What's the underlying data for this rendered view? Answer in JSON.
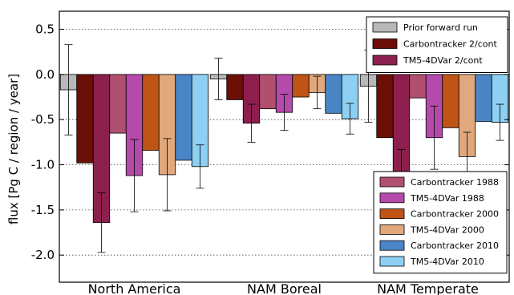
{
  "chart_data": {
    "type": "bar",
    "ylabel": "flux [Pg C / region / year]",
    "ylim": [
      -2.3,
      0.7
    ],
    "yticks": [
      0.5,
      0.0,
      -0.5,
      -1.0,
      -1.5,
      -2.0
    ],
    "ytick_labels": [
      "0.5",
      "0.0",
      "-0.5",
      "-1.0",
      "-1.5",
      "-2.0"
    ],
    "grid": "horizontal-dotted",
    "categories": [
      "North America",
      "NAM Boreal",
      "NAM Temperate"
    ],
    "series": [
      {
        "name": "Prior forward run",
        "color": "#b8b8b8",
        "values": [
          -0.17,
          -0.05,
          -0.13
        ],
        "errors": [
          0.5,
          0.23,
          0.4
        ],
        "errcolor": "#000000"
      },
      {
        "name": "Carbontracker 2/cont",
        "color": "#6b0f07",
        "values": [
          -0.98,
          -0.28,
          -0.7
        ],
        "errors": [
          null,
          null,
          null
        ],
        "errcolor": "#000000"
      },
      {
        "name": "TM5-4DVar 2/cont",
        "color": "#8c1f4d",
        "values": [
          -1.64,
          -0.54,
          -1.1
        ],
        "errors": [
          0.33,
          0.21,
          0.27
        ],
        "errcolor": "#000000"
      },
      {
        "name": "Carbontracker 1988",
        "color": "#b0506e",
        "values": [
          -0.65,
          -0.38,
          -0.26
        ],
        "errors": [
          null,
          null,
          null
        ],
        "errcolor": "#000000"
      },
      {
        "name": "TM5-4DVar 1988",
        "color": "#b44aaa",
        "values": [
          -1.12,
          -0.42,
          -0.7
        ],
        "errors": [
          0.4,
          0.2,
          0.35
        ],
        "errcolor": "#000000"
      },
      {
        "name": "Carbontracker 2000",
        "color": "#c05416",
        "values": [
          -0.84,
          -0.25,
          -0.59
        ],
        "errors": [
          null,
          null,
          null
        ],
        "errcolor": "#000000"
      },
      {
        "name": "TM5-4DVar 2000",
        "color": "#e0a87c",
        "values": [
          -1.11,
          -0.2,
          -0.91
        ],
        "errors": [
          0.4,
          0.18,
          0.27
        ],
        "errcolor": "#000000"
      },
      {
        "name": "Carbontracker 2010",
        "color": "#4a86c6",
        "values": [
          -0.95,
          -0.43,
          -0.52
        ],
        "errors": [
          null,
          null,
          null
        ],
        "errcolor": "#000000"
      },
      {
        "name": "TM5-4DVar 2010",
        "color": "#8dd0f3",
        "values": [
          -1.02,
          -0.49,
          -0.53
        ],
        "errors": [
          0.24,
          0.17,
          0.2
        ],
        "errcolor": "#000000"
      }
    ],
    "legend_top": [
      "Prior forward run",
      "Carbontracker 2/cont",
      "TM5-4DVar 2/cont"
    ],
    "legend_top_placement": "top-right",
    "legend_bottom": [
      "Carbontracker 1988",
      "TM5-4DVar 1988",
      "Carbontracker 2000",
      "TM5-4DVar 2000",
      "Carbontracker 2010",
      "TM5-4DVar 2010"
    ],
    "legend_bottom_placement": "bottom-right"
  }
}
